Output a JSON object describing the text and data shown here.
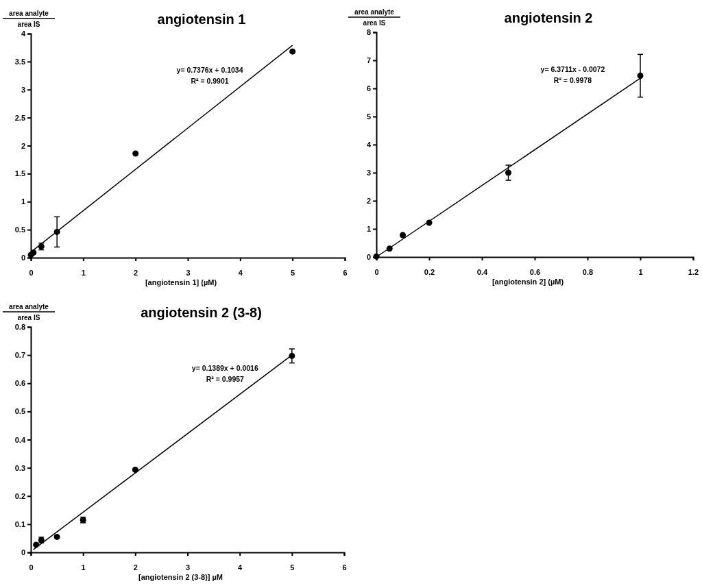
{
  "chart_data": [
    {
      "type": "scatter",
      "title": "angiotensin 1",
      "xlabel": "[angiotensin 1] (µM)",
      "ylabel": "area analyte\narea IS",
      "annotations": [
        "y= 0.7376x + 0.1034",
        "R² = 0.9901"
      ],
      "xlim": [
        0,
        6
      ],
      "xticks": [
        0,
        1,
        2,
        3,
        4,
        5,
        6
      ],
      "ylim": [
        0,
        4
      ],
      "yticks": [
        0,
        0.5,
        1,
        1.5,
        2,
        2.5,
        3,
        3.5,
        4
      ],
      "marker": "circle",
      "grid": false,
      "series": [
        {
          "type": "scatter",
          "color": "#000000",
          "x": [
            0,
            0.05,
            0.2,
            0.5,
            2,
            5
          ],
          "values": [
            0.05,
            0.09,
            0.2,
            0.46,
            1.86,
            3.68
          ],
          "errors": [
            null,
            null,
            0.06,
            0.27,
            null,
            null
          ]
        },
        {
          "type": "line",
          "marker": "none",
          "color": "#000000",
          "x": [
            0,
            5
          ],
          "values": [
            0.1,
            3.79
          ]
        }
      ]
    },
    {
      "type": "scatter",
      "title": "angiotensin 2",
      "xlabel": "[angiotensin 2] (µM)",
      "ylabel": "area analyte\narea IS",
      "annotations": [
        "y= 6.3711x - 0.0072",
        "R² = 0.9978"
      ],
      "xlim": [
        0,
        1.2
      ],
      "xticks": [
        0,
        0.2,
        0.4,
        0.6,
        0.8,
        1,
        1.2
      ],
      "ylim": [
        0,
        8
      ],
      "yticks": [
        0,
        1,
        2,
        3,
        4,
        5,
        6,
        7,
        8
      ],
      "marker": "circle",
      "grid": false,
      "series": [
        {
          "type": "scatter",
          "color": "#000000",
          "x": [
            0,
            0.05,
            0.1,
            0.2,
            0.5,
            1
          ],
          "values": [
            0.02,
            0.3,
            0.78,
            1.22,
            3.0,
            6.45
          ],
          "errors": [
            null,
            null,
            null,
            null,
            0.27,
            0.76
          ]
        },
        {
          "type": "line",
          "marker": "none",
          "color": "#000000",
          "x": [
            0,
            1
          ],
          "values": [
            0,
            6.36
          ]
        }
      ]
    },
    {
      "type": "scatter",
      "title": "angiotensin 2 (3-8)",
      "xlabel": "[angiotensin 2 (3-8)] µM",
      "ylabel": "area analyte\narea IS",
      "annotations": [
        "y= 0.1389x + 0.0016",
        "R² = 0.9957"
      ],
      "xlim": [
        0,
        6
      ],
      "xticks": [
        0,
        1,
        2,
        3,
        4,
        5,
        6
      ],
      "ylim": [
        0,
        0.8
      ],
      "yticks": [
        0,
        0.1,
        0.2,
        0.3,
        0.4,
        0.5,
        0.6,
        0.7,
        0.8
      ],
      "marker": "circle",
      "grid": false,
      "series": [
        {
          "type": "scatter",
          "color": "#000000",
          "x": [
            0.1,
            0.2,
            0.5,
            1,
            2,
            5
          ],
          "values": [
            0.027,
            0.044,
            0.055,
            0.115,
            0.293,
            0.697
          ],
          "errors": [
            null,
            0.01,
            null,
            0.01,
            null,
            0.025
          ]
        },
        {
          "type": "line",
          "marker": "none",
          "color": "#000000",
          "x": [
            0.05,
            5
          ],
          "values": [
            0.01,
            0.7
          ]
        }
      ]
    }
  ]
}
